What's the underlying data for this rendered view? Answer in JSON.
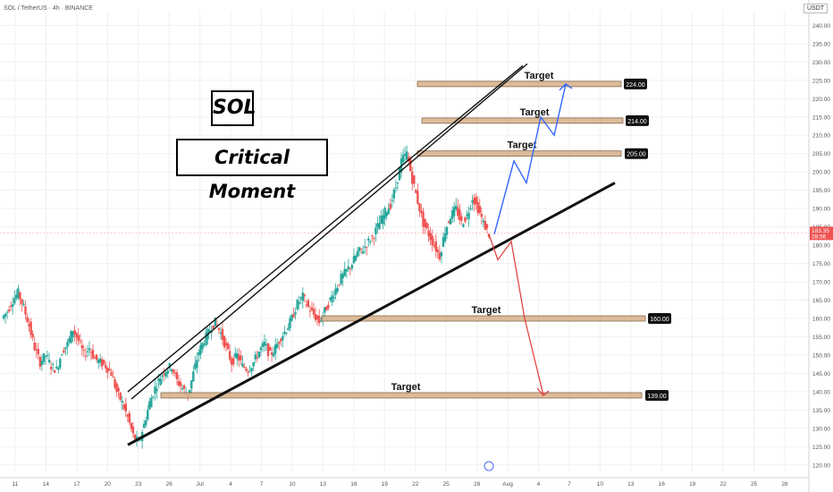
{
  "header": {
    "symbol": "SOL / TetherUS · 4h · BINANCE",
    "currency": "USDT"
  },
  "annotations": {
    "title1": "SOL",
    "title2": "Critical Moment"
  },
  "chart_data": {
    "type": "candlestick",
    "ylim": [
      118,
      244
    ],
    "y_ticks": [
      120,
      125,
      130,
      135,
      140,
      145,
      150,
      155,
      160,
      165,
      170,
      175,
      180,
      185,
      190,
      195,
      200,
      205,
      210,
      215,
      220,
      225,
      230,
      235,
      240
    ],
    "y_tick_labels": [
      "120.00",
      "125.00",
      "130.00",
      "135.00",
      "140.00",
      "145.00",
      "150.00",
      "155.00",
      "160.00",
      "165.00",
      "170.00",
      "175.00",
      "180.00",
      "185.00",
      "190.00",
      "195.00",
      "200.00",
      "205.00",
      "210.00",
      "215.00",
      "220.00",
      "225.00",
      "230.00",
      "235.00",
      "240.00"
    ],
    "x_ticks": [
      "11",
      "14",
      "17",
      "20",
      "23",
      "26",
      "Jul",
      "4",
      "7",
      "10",
      "13",
      "16",
      "19",
      "22",
      "25",
      "28",
      "Aug",
      "4",
      "7",
      "10",
      "13",
      "16",
      "19",
      "22",
      "25",
      "28"
    ],
    "current_price": {
      "value": 183.35,
      "label": "183.35",
      "countdown": "28:56"
    },
    "targets": [
      {
        "label": "Target",
        "price": 224.0,
        "price_label": "224.00"
      },
      {
        "label": "Target",
        "price": 214.0,
        "price_label": "214.00"
      },
      {
        "label": "Target",
        "price": 205.0,
        "price_label": "205.00"
      },
      {
        "label": "Target",
        "price": 160.0,
        "price_label": "160.00"
      },
      {
        "label": "Target",
        "price": 139.0,
        "price_label": "139.00"
      }
    ],
    "price_path": [
      160,
      162,
      165,
      167,
      163,
      158,
      152,
      148,
      150,
      147,
      146,
      151,
      153,
      157,
      154,
      150,
      152,
      149,
      148,
      147,
      145,
      140,
      137,
      133,
      128,
      126,
      131,
      137,
      141,
      144,
      146,
      147,
      143,
      141,
      139,
      145,
      151,
      154,
      157,
      159,
      156,
      152,
      148,
      150,
      147,
      146,
      148,
      151,
      153,
      150,
      152,
      155,
      157,
      160,
      164,
      166,
      163,
      161,
      159,
      162,
      165,
      168,
      171,
      173,
      175,
      178,
      179,
      181,
      183,
      186,
      189,
      191,
      196,
      203,
      205,
      198,
      192,
      186,
      183,
      180,
      177,
      184,
      188,
      190,
      186,
      188,
      193,
      190,
      186,
      183
    ],
    "projections": {
      "bullish": [
        183,
        195,
        203,
        197,
        207,
        215,
        210,
        224
      ],
      "bearish": [
        183,
        176,
        181,
        160,
        139
      ]
    },
    "colors": {
      "up": "#26a69a",
      "down": "#ef5350",
      "bull_arrow": "#3366ff",
      "bear_arrow": "#e03a3a",
      "zone": "#d9b48f",
      "grid": "#eef0f3"
    }
  }
}
